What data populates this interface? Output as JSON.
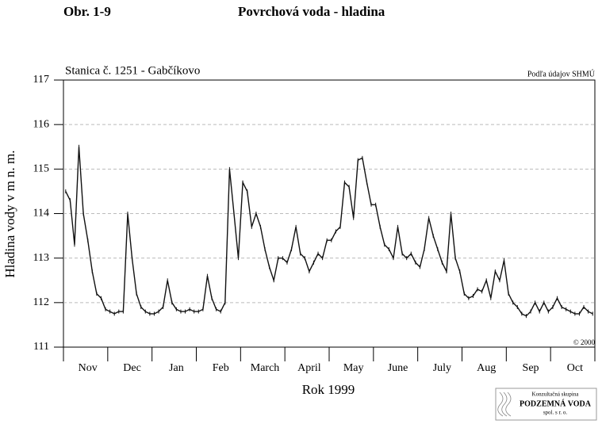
{
  "chart_data": {
    "type": "line",
    "figure_label": "Obr. 1-9",
    "title": "Povrchová voda - hladina",
    "subtitle": "Stanica č. 1251 - Gabčíkovo",
    "source": "Podľa údajov SHMÚ",
    "copyright": "© 2000",
    "ylabel": "Hladina vody v m n. m.",
    "xlabel": "Rok 1999",
    "logo": [
      "Konzultačná skupina",
      "PODZEMNÁ VODA",
      "spol. s r. o."
    ],
    "color": "#111111",
    "grid": true,
    "ylim": [
      111,
      117
    ],
    "yticks": [
      111,
      112,
      113,
      114,
      115,
      116,
      117
    ],
    "categories": [
      null,
      null,
      null,
      null,
      null,
      "Nov",
      null,
      null,
      null,
      null,
      null,
      null,
      null,
      null,
      null,
      "Dec",
      null,
      null,
      null,
      null,
      null,
      null,
      null,
      null,
      null,
      "Jan",
      null,
      null,
      null,
      null,
      null,
      null,
      null,
      null,
      null,
      "Feb",
      null,
      null,
      null,
      null,
      null,
      null,
      null,
      null,
      null,
      "March",
      null,
      null,
      null,
      null,
      null,
      null,
      null,
      null,
      null,
      "April",
      null,
      null,
      null,
      null,
      null,
      null,
      null,
      null,
      null,
      "May",
      null,
      null,
      null,
      null,
      null,
      null,
      null,
      null,
      null,
      "June",
      null,
      null,
      null,
      null,
      null,
      null,
      null,
      null,
      null,
      "July",
      null,
      null,
      null,
      null,
      null,
      null,
      null,
      null,
      null,
      "Aug",
      null,
      null,
      null,
      null,
      null,
      null,
      null,
      null,
      null,
      "Sep",
      null,
      null,
      null,
      null,
      null,
      null,
      null,
      null,
      null,
      "Oct",
      null,
      null,
      null,
      null
    ],
    "values": [
      114.5,
      114.3,
      113.3,
      115.5,
      114.0,
      113.4,
      112.7,
      112.2,
      112.1,
      111.85,
      111.8,
      111.75,
      111.8,
      111.8,
      114.0,
      113.0,
      112.2,
      111.9,
      111.8,
      111.75,
      111.75,
      111.8,
      111.9,
      112.5,
      112.0,
      111.85,
      111.8,
      111.8,
      111.85,
      111.8,
      111.8,
      111.85,
      112.6,
      112.1,
      111.85,
      111.8,
      112.0,
      115.0,
      114.0,
      113.0,
      114.7,
      114.5,
      113.7,
      114.0,
      113.7,
      113.2,
      112.8,
      112.5,
      113.0,
      113.0,
      112.9,
      113.2,
      113.7,
      113.1,
      113.0,
      112.7,
      112.9,
      113.1,
      113.0,
      113.4,
      113.4,
      113.6,
      113.7,
      114.7,
      114.6,
      113.9,
      115.2,
      115.25,
      114.7,
      114.2,
      114.2,
      113.7,
      113.3,
      113.2,
      113.0,
      113.7,
      113.1,
      113.0,
      113.1,
      112.9,
      112.8,
      113.2,
      113.9,
      113.5,
      113.2,
      112.9,
      112.7,
      114.0,
      113.0,
      112.7,
      112.2,
      112.1,
      112.15,
      112.3,
      112.25,
      112.5,
      112.1,
      112.7,
      112.5,
      112.95,
      112.2,
      112.0,
      111.9,
      111.75,
      111.7,
      111.8,
      112.0,
      111.8,
      112.0,
      111.8,
      111.9,
      112.1,
      111.9,
      111.85,
      111.8,
      111.75,
      111.75,
      111.9,
      111.8,
      111.75
    ]
  }
}
